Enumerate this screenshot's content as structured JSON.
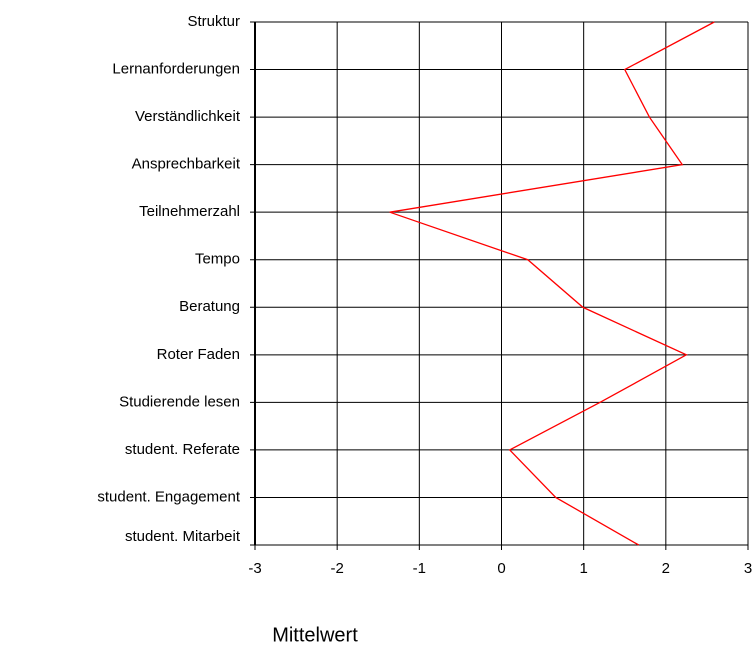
{
  "chart_data": {
    "type": "line",
    "orientation": "horizontal",
    "categories": [
      "Struktur",
      "Lernanforderungen",
      "Verständlichkeit",
      "Ansprechbarkeit",
      "Teilnehmerzahl",
      "Tempo",
      "Beratung",
      "Roter Faden",
      "Studierende lesen",
      "student. Referate",
      "student. Engagement",
      "student. Mitarbeit"
    ],
    "series": [
      {
        "color": "#ff0000",
        "values": [
          2.59,
          1.5,
          1.8,
          2.2,
          -1.36,
          0.32,
          0.99,
          2.25,
          1.2,
          0.1,
          0.66,
          1.67
        ]
      }
    ],
    "xlim": [
      -3,
      3
    ],
    "xticks": [
      -3,
      -2,
      -1,
      0,
      1,
      2,
      3
    ],
    "xlabel": "Mittelwert",
    "grid": true
  }
}
